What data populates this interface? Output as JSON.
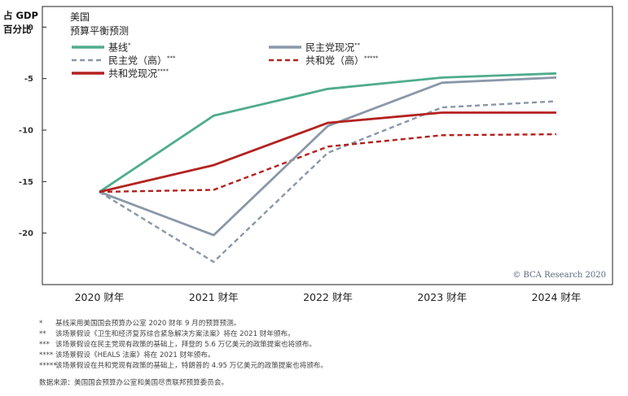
{
  "chart_data": {
    "type": "line",
    "title": "美国预算平衡预测",
    "title_lines": [
      "美国",
      "预算平衡预测"
    ],
    "ylabel_lines": [
      "占 GDP",
      "百分比"
    ],
    "categories": [
      "2020 财年",
      "2021 财年",
      "2022 财年",
      "2023 财年",
      "2024 财年"
    ],
    "ylim": [
      -25,
      2
    ],
    "yticks": [
      0,
      -5,
      -10,
      -15,
      -20
    ],
    "grid": false,
    "legend_position": "top-left",
    "series": [
      {
        "name": "基线",
        "marker": "*",
        "style": "solid",
        "color": "#4fac8d",
        "values": [
          -16.0,
          -8.6,
          -6.0,
          -4.9,
          -4.5
        ]
      },
      {
        "name": "民主党现况",
        "marker": "**",
        "style": "solid",
        "color": "#8a98a8",
        "values": [
          -16.0,
          -20.2,
          -9.6,
          -5.4,
          -4.9
        ]
      },
      {
        "name": "民主党（高）",
        "marker": "***",
        "style": "dashed",
        "color": "#8a98a8",
        "values": [
          -16.0,
          -22.8,
          -12.2,
          -7.8,
          -7.2
        ]
      },
      {
        "name": "共和党（高）",
        "marker": "*****",
        "style": "dashed",
        "color": "#b3221f",
        "values": [
          -16.0,
          -15.8,
          -11.6,
          -10.5,
          -10.4
        ]
      },
      {
        "name": "共和党现况",
        "marker": "****",
        "style": "solid",
        "color": "#b3221f",
        "values": [
          -16.0,
          -13.4,
          -9.3,
          -8.3,
          -8.3
        ]
      }
    ],
    "watermark": "© BCA Research 2020"
  },
  "footnotes": [
    {
      "mark": "*",
      "text": "基线采用美国国会预算办公室 2020 财年 9 月的预算预测。"
    },
    {
      "mark": "**",
      "text": "该场景假设《卫生和经济复苏综合紧急解决方案法案》将在 2021 财年颁布。"
    },
    {
      "mark": "***",
      "text": "该场景假设在民主党现有政策的基础上，拜登的 5.6 万亿美元的政策提案也将颁布。"
    },
    {
      "mark": "****",
      "text": "该场景假设《HEALS 法案》将在 2021 财年颁布。"
    },
    {
      "mark": "*****",
      "text": "该场景假设在共和党现有政策的基础上，特朗普的 4.95 万亿美元的政策提案也将颁布。"
    }
  ],
  "source": "数据来源：美国国会预算办公室和美国尽责联邦预算委员会。"
}
